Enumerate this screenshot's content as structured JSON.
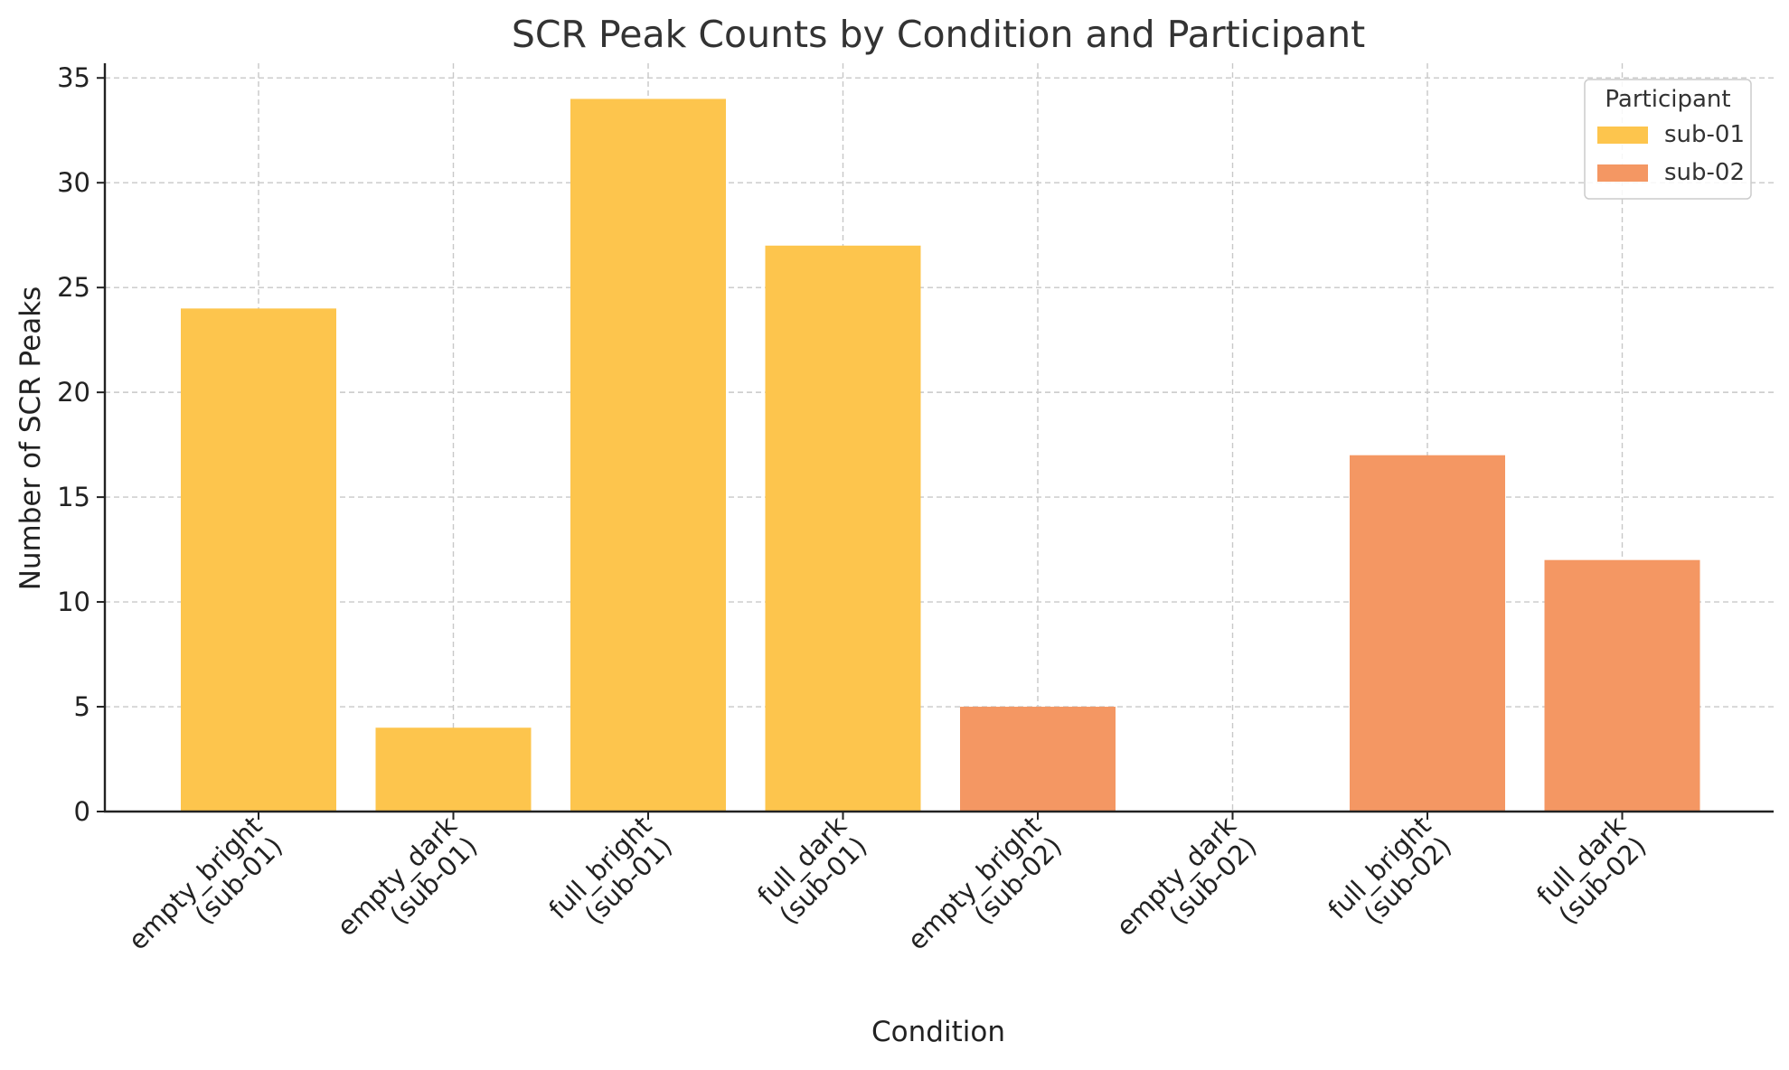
{
  "chart_data": {
    "type": "bar",
    "title": "SCR Peak Counts by Condition and Participant",
    "xlabel": "Condition",
    "ylabel": "Number of SCR Peaks",
    "ylim": [
      0,
      35.7
    ],
    "yticks": [
      0,
      5,
      10,
      15,
      20,
      25,
      30,
      35
    ],
    "grid": true,
    "legend": {
      "title": "Participant",
      "position": "top-right"
    },
    "categories": [
      [
        "empty_bright",
        "(sub-01)"
      ],
      [
        "empty_dark",
        "(sub-01)"
      ],
      [
        "full_bright",
        "(sub-01)"
      ],
      [
        "full_dark",
        "(sub-01)"
      ],
      [
        "empty_bright",
        "(sub-02)"
      ],
      [
        "empty_dark",
        "(sub-02)"
      ],
      [
        "full_bright",
        "(sub-02)"
      ],
      [
        "full_dark",
        "(sub-02)"
      ]
    ],
    "series": [
      {
        "name": "sub-01",
        "color": "#fdc54d",
        "values": [
          24,
          4,
          34,
          27,
          null,
          null,
          null,
          null
        ]
      },
      {
        "name": "sub-02",
        "color": "#f49763",
        "values": [
          null,
          null,
          null,
          null,
          5,
          0,
          17,
          12
        ]
      }
    ]
  }
}
